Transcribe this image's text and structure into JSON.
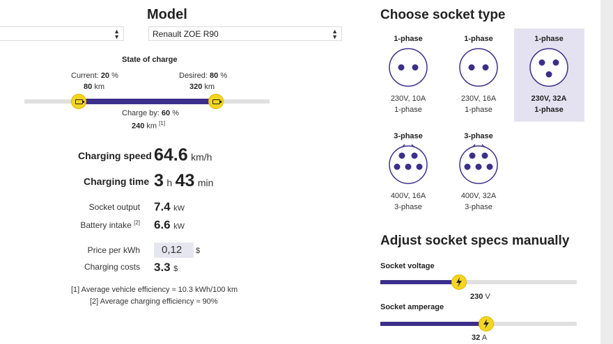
{
  "model": {
    "title": "Model",
    "left_select_value": "",
    "select_value": "Renault ZOE R90"
  },
  "soc": {
    "title": "State of charge",
    "current_label": "Current:",
    "current_pct": "20",
    "current_km": "80",
    "desired_label": "Desired:",
    "desired_pct": "80",
    "desired_km": "320",
    "charge_by_label": "Charge by:",
    "charge_by_pct": "60",
    "charge_by_km": "240",
    "pct_unit": "%",
    "km_unit": "km",
    "footnote_ref": "[1]",
    "current_fraction": 0.2,
    "desired_fraction": 0.8
  },
  "results": {
    "speed_label": "Charging speed",
    "speed_value": "64.6",
    "speed_unit": "km/h",
    "time_label": "Charging time",
    "time_hours": "3",
    "time_h_unit": "h",
    "time_minutes": "43",
    "time_min_unit": "min",
    "socket_output_label": "Socket output",
    "socket_output_value": "7.4",
    "socket_output_unit": "kW",
    "battery_intake_label": "Battery intake",
    "battery_intake_ref": "[2]",
    "battery_intake_value": "6.6",
    "battery_intake_unit": "kW",
    "price_label": "Price per kWh",
    "price_value": "0,12",
    "price_unit": "$",
    "costs_label": "Charging costs",
    "costs_value": "3.3",
    "costs_unit": "$",
    "footnote1": "[1] Average vehicle efficiency ≈ 10.3 kWh/100 km",
    "footnote2": "[2] Average charging efficiency ≈ 90%"
  },
  "sockets": {
    "title": "Choose socket type",
    "items": [
      {
        "phase": "1-phase",
        "spec": "230V, 10A",
        "foot": "1-phase",
        "pins": 2,
        "selected": false
      },
      {
        "phase": "1-phase",
        "spec": "230V, 16A",
        "foot": "1-phase",
        "pins": 2,
        "selected": false
      },
      {
        "phase": "1-phase",
        "spec": "230V, 32A",
        "foot": "1-phase",
        "pins": 3,
        "selected": true
      },
      {
        "phase": "3-phase",
        "spec": "400V, 16A",
        "foot": "3-phase",
        "pins": 5,
        "selected": false
      },
      {
        "phase": "3-phase",
        "spec": "400V, 32A",
        "foot": "3-phase",
        "pins": 5,
        "selected": false
      }
    ],
    "accent_color": "#3c2f8a"
  },
  "manual": {
    "title": "Adjust socket specs manually",
    "voltage_label": "Socket voltage",
    "voltage_value": "230",
    "voltage_unit": "V",
    "voltage_fraction": 0.4,
    "amperage_label": "Socket amperage",
    "amperage_value": "32",
    "amperage_unit": "A",
    "amperage_fraction": 0.54
  }
}
